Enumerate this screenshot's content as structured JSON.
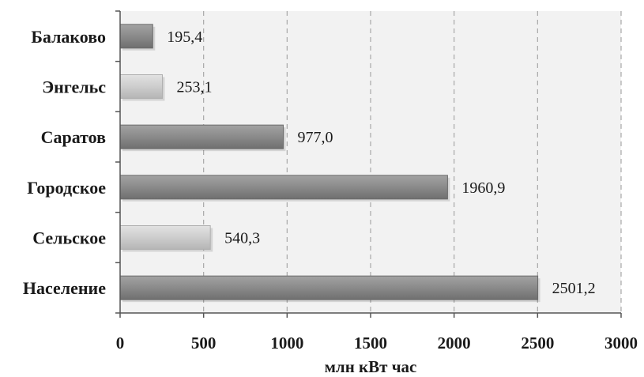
{
  "chart_data": {
    "type": "bar",
    "orientation": "horizontal",
    "categories": [
      "Балаково",
      "Энгельс",
      "Саратов",
      "Городское",
      "Сельское",
      "Население"
    ],
    "values": [
      195.4,
      253.1,
      977.0,
      1960.9,
      540.3,
      2501.2
    ],
    "value_labels": [
      "195,4",
      "253,1",
      "977,0",
      "1960,9",
      "540,3",
      "2501,2"
    ],
    "bar_colors": [
      "#8c8c8c",
      "#cfcfcf",
      "#8c8c8c",
      "#8c8c8c",
      "#cfcfcf",
      "#8c8c8c"
    ],
    "xlabel": "млн кВт час",
    "ylabel": "",
    "xlim": [
      0,
      3000
    ],
    "xticks": [
      0,
      500,
      1000,
      1500,
      2000,
      2500,
      3000
    ],
    "xtick_labels": [
      "0",
      "500",
      "1000",
      "1500",
      "2000",
      "2500",
      "3000"
    ],
    "grid": "vertical-dashed",
    "plot_background": "#f2f2f2"
  }
}
